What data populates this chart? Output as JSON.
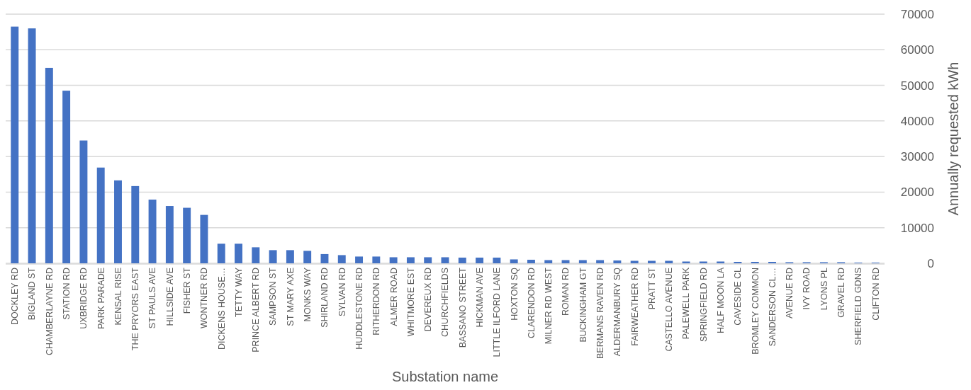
{
  "chart_data": {
    "type": "bar",
    "xlabel": "Substation name",
    "ylabel": "Annually requested kWh",
    "categories": [
      "DOCKLEY RD",
      "BIGLAND ST",
      "CHAMBERLAYNE RD",
      "STATION RD",
      "UXBRIDGE RD",
      "PARK PARADE",
      "KENSAL RISE",
      "THE PRYORS EAST",
      "ST PAULS AVE",
      "HILLSIDE AVE",
      "FISHER ST",
      "WONTNER RD",
      "DICKENS HOUSE…",
      "TETTY WAY",
      "PRINCE ALBERT RD",
      "SAMPSON ST",
      "ST MARY AXE",
      "MONKS WAY",
      "SHIRLAND RD",
      "SYLVAN RD",
      "HUDDLESTONE RD",
      "RITHERDON RD",
      "ALMER ROAD",
      "WHITMORE EST",
      "DEVEREUX RD",
      "CHURCHFIELDS",
      "BASSANO STREET",
      "HICKMAN AVE",
      "LITTLE ILFORD LANE",
      "HOXTON SQ",
      "CLARENDON RD",
      "MILNER RD WEST",
      "ROMAN RD",
      "BUCKINGHAM GT",
      "BERMANS RAVEN RD",
      "ALDERMANBURY SQ",
      "FAIRWEATHER RD",
      "PRATT ST",
      "CASTELLO AVENUE",
      "PALEWELL PARK",
      "SPRINGFIELD RD",
      "HALF MOON LA",
      "CAVESIDE CL",
      "BROMLEY COMMON",
      "SANDERSON CL…",
      "AVENUE RD",
      "IVY ROAD",
      "LYONS PL",
      "GRAVEL RD",
      "SHERFIELD GDNS",
      "CLIFTON RD"
    ],
    "values": [
      66500,
      66000,
      54900,
      48500,
      34500,
      26900,
      23300,
      21700,
      17900,
      16100,
      15600,
      13600,
      5500,
      5500,
      4500,
      3700,
      3700,
      3500,
      2600,
      2300,
      1900,
      1900,
      1700,
      1700,
      1700,
      1700,
      1600,
      1600,
      1600,
      1100,
      1000,
      900,
      900,
      900,
      900,
      800,
      700,
      700,
      700,
      500,
      500,
      500,
      400,
      400,
      400,
      300,
      300,
      300,
      300,
      200,
      200
    ],
    "color": "#4472c4",
    "ylim": [
      0,
      70000
    ],
    "yticks": [
      0,
      10000,
      20000,
      30000,
      40000,
      50000,
      60000,
      70000
    ],
    "grid": "y"
  }
}
